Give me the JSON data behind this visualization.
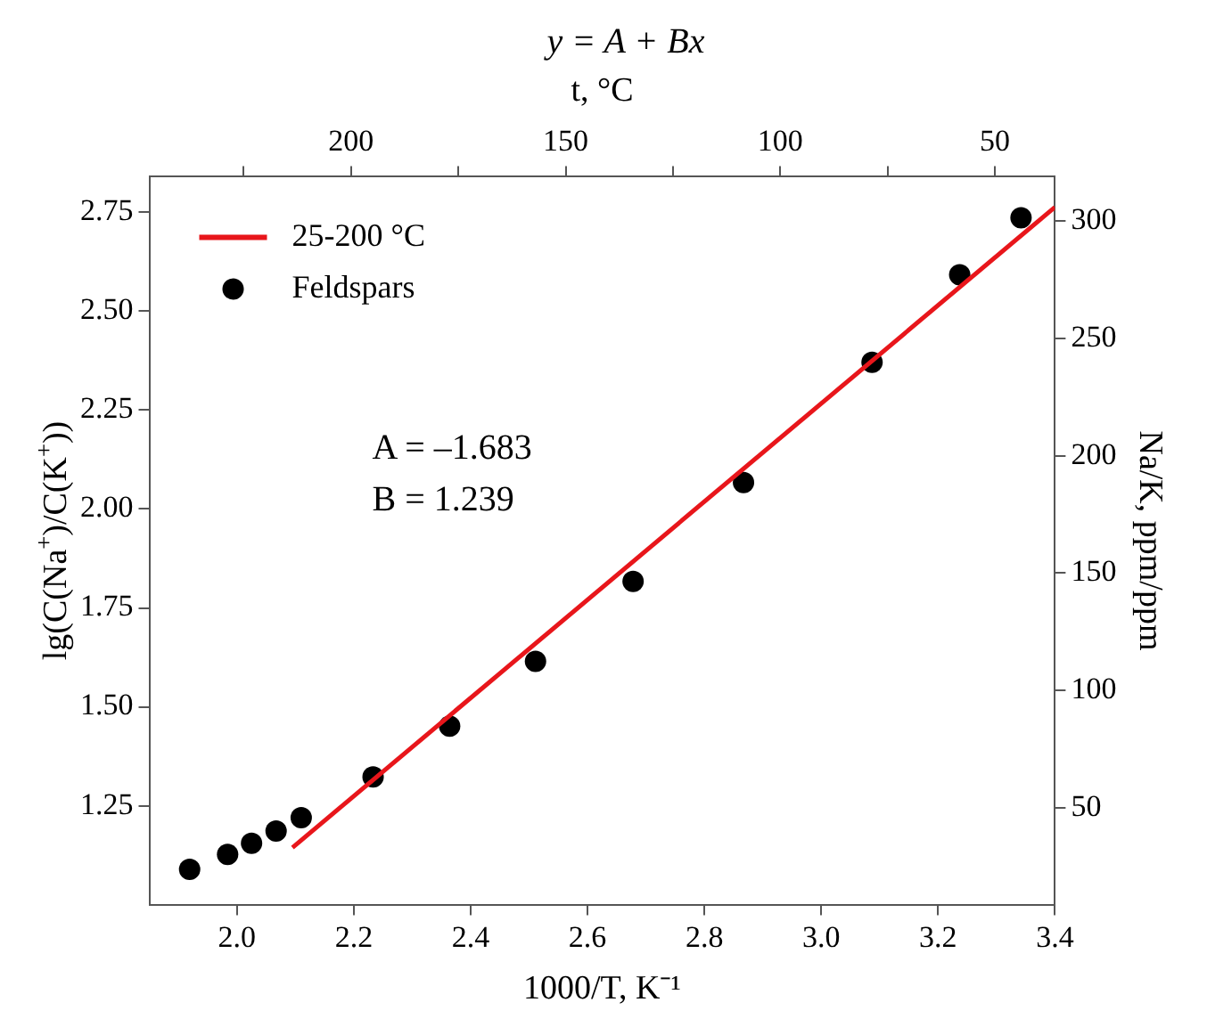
{
  "chart_data": {
    "type": "scatter",
    "title": "y = A + Bx",
    "xlabel": "1000/T, K⁻¹",
    "ylabel": "lg(C(Na$^{+}$)/C(K$^{+}$))",
    "y2label": "Na/K, ppm/ppm",
    "x2label": "t, °C",
    "xlim": [
      1.85,
      3.4
    ],
    "xticks": [
      {
        "value": 2.0,
        "label": "2.0"
      },
      2.2,
      2.4,
      2.6,
      2.8,
      {
        "value": 3.0,
        "label": "3.0"
      },
      3.2,
      3.4
    ],
    "ylim": [
      1.0,
      2.84
    ],
    "yticks": [
      1.25,
      {
        "value": 1.5,
        "label": "1.50"
      },
      1.75,
      {
        "value": 2.0,
        "label": "2.00"
      },
      2.25,
      {
        "value": 2.5,
        "label": "2.50"
      },
      2.75
    ],
    "y2lim": [
      8.7,
      318.9
    ],
    "y2ticks": [
      50,
      100,
      150,
      200,
      250,
      300
    ],
    "x2lim": [
      247,
      36
    ],
    "x2ticks": [
      {
        "value": 225,
        "label": null
      },
      200,
      {
        "value": 175,
        "label": null
      },
      150,
      {
        "value": 125,
        "label": null
      },
      100,
      {
        "value": 75,
        "label": null
      },
      50
    ],
    "grid": false,
    "legend": "top left",
    "marker": "circle",
    "annotations": [
      "A = –1.683",
      "B = 1.239"
    ],
    "series": [
      {
        "name": "25-200 °C",
        "type": "line",
        "color": "#e8161b",
        "line_style": "solid",
        "marker": "none",
        "x": [
          2.095,
          3.4
        ],
        "values": [
          1.144,
          2.763
        ]
      },
      {
        "name": "Feldspars",
        "color": "#000000",
        "x": [
          1.919,
          1.984,
          2.025,
          2.067,
          2.11,
          2.233,
          2.364,
          2.511,
          2.678,
          2.867,
          3.087,
          3.237,
          3.342
        ],
        "values": [
          1.089,
          1.127,
          1.155,
          1.186,
          1.22,
          1.323,
          1.451,
          1.615,
          1.817,
          2.067,
          2.371,
          2.592,
          2.736
        ]
      }
    ]
  }
}
